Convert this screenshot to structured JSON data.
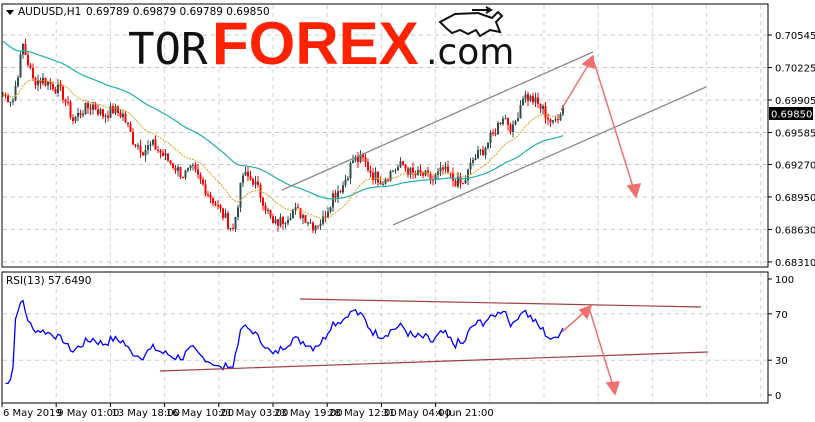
{
  "header": {
    "symbol": "AUDUSD,H1",
    "ohlc": "0.69789 0.69879 0.69789 0.69850"
  },
  "logo": {
    "text_a": "TOR",
    "text_b": "FOREX",
    "text_c": ".com"
  },
  "colors": {
    "bull_candle": "#2f4f4f",
    "bear_candle": "#ff0000",
    "ma_fast": "#daa520",
    "ma_slow": "#20b2aa",
    "rsi_line": "#0000ff",
    "channel": "#808080",
    "rsi_trend": "#a52a2a",
    "forecast_arrow": "#f07070",
    "logo_red": "#ff2200"
  },
  "chart_data": [
    {
      "type": "candlestick",
      "title": "AUDUSD,H1",
      "ylim": [
        0.6831,
        0.707
      ],
      "y_ticks": [
        "0.70545",
        "0.70225",
        "0.69905",
        "0.69585",
        "0.69270",
        "0.68950",
        "0.68630",
        "0.68310"
      ],
      "current_price": "0.69850",
      "x_ticks": [
        "6 May 2019",
        "9 May 01:00",
        "13 May 18:00",
        "16 May 10:00",
        "21 May 03:00",
        "23 May 19:00",
        "28 May 12:00",
        "31 May 04:00",
        "4 Jun 21:00"
      ],
      "grid": true,
      "approx_closes": [
        0.69954,
        0.69905,
        0.70446,
        0.70102,
        0.70102,
        0.70052,
        0.69954,
        0.69708,
        0.69806,
        0.69855,
        0.69757,
        0.69806,
        0.69757,
        0.69511,
        0.69412,
        0.69461,
        0.69363,
        0.69264,
        0.69166,
        0.69215,
        0.69067,
        0.6892,
        0.68772,
        0.68624,
        0.69166,
        0.69117,
        0.6892,
        0.68673,
        0.68723,
        0.68821,
        0.68772,
        0.68673,
        0.68723,
        0.68969,
        0.69067,
        0.69314,
        0.69314,
        0.69166,
        0.69117,
        0.69215,
        0.69264,
        0.69166,
        0.69166,
        0.69117,
        0.69215,
        0.69117,
        0.69067,
        0.69314,
        0.69412,
        0.6956,
        0.69757,
        0.69609,
        0.69954,
        0.69905,
        0.69806,
        0.69658,
        0.69855
      ],
      "overlays": [
        "moving average (fast)",
        "moving average (slow)",
        "ascending channel",
        "forecast arrows up then down"
      ]
    },
    {
      "type": "line",
      "title": "RSI(13) 57.6490",
      "ylim": [
        0,
        100
      ],
      "y_ticks": [
        "100",
        "70",
        "30",
        "0"
      ],
      "levels": [
        70,
        30
      ],
      "last_value": 57.649,
      "overlays": [
        "converging trend lines",
        "forecast arrows up then down"
      ]
    }
  ]
}
